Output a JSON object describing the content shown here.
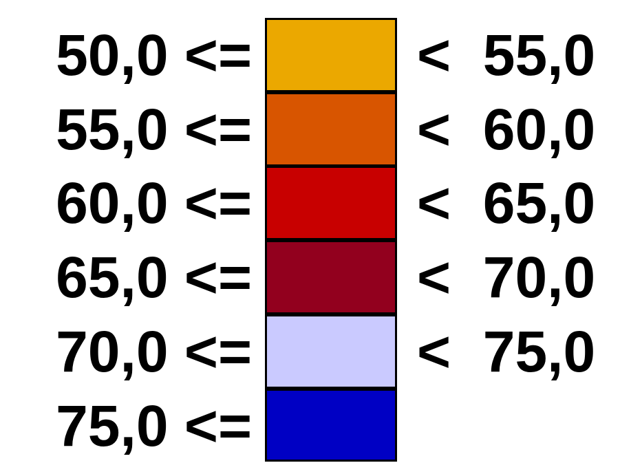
{
  "legend": {
    "classes": [
      {
        "lower": "50,0 <=",
        "upper": "<  55,0",
        "color": "#EBA800"
      },
      {
        "lower": "55,0 <=",
        "upper": "<  60,0",
        "color": "#D85500"
      },
      {
        "lower": "60,0 <=",
        "upper": "<  65,0",
        "color": "#C80000"
      },
      {
        "lower": "65,0 <=",
        "upper": "<  70,0",
        "color": "#92001E"
      },
      {
        "lower": "70,0 <=",
        "upper": "<  75,0",
        "color": "#CACAFF"
      },
      {
        "lower": "75,0 <=",
        "upper": "",
        "color": "#0000C4"
      }
    ]
  }
}
